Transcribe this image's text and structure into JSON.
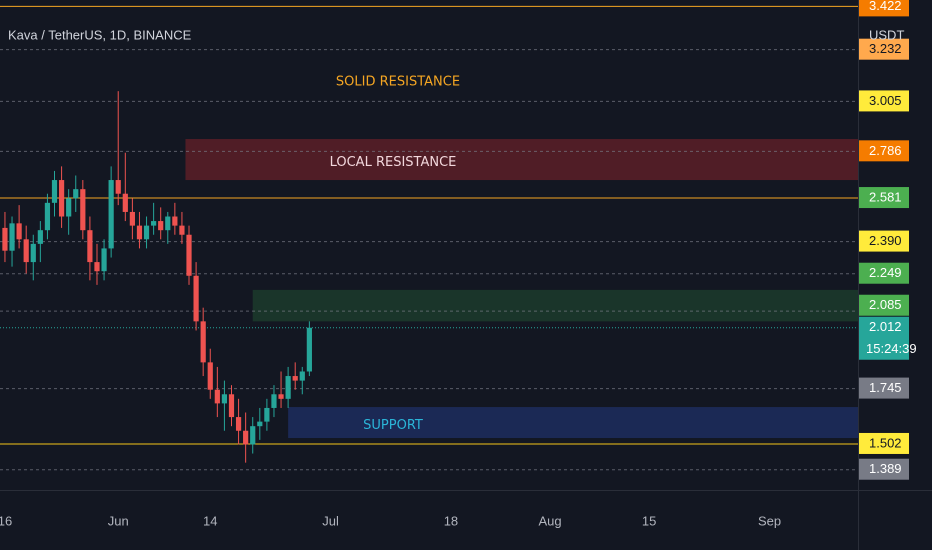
{
  "chart_data": {
    "type": "candlestick",
    "title": "Kava / TetherUS, 1D, BINANCE",
    "currency": "USDT",
    "up_color": "#26a69a",
    "down_color": "#ef5350",
    "ylim": [
      1.3,
      3.45
    ],
    "xlim": [
      -0.7,
      120.5
    ],
    "xticks": [
      {
        "value": 0,
        "label": "16"
      },
      {
        "value": 16,
        "label": "Jun"
      },
      {
        "value": 29,
        "label": "14"
      },
      {
        "value": 46,
        "label": "Jul"
      },
      {
        "value": 63,
        "label": "18"
      },
      {
        "value": 77,
        "label": "Aug"
      },
      {
        "value": 91,
        "label": "15"
      },
      {
        "value": 108,
        "label": "Sep"
      }
    ],
    "series": [
      {
        "name": "KAVAUSDT",
        "open": [
          2.45,
          2.35,
          2.47,
          2.4,
          2.3,
          2.38,
          2.44,
          2.56,
          2.66,
          2.5,
          2.58,
          2.62,
          2.44,
          2.3,
          2.26,
          2.36,
          2.66,
          2.6,
          2.52,
          2.46,
          2.4,
          2.46,
          2.48,
          2.44,
          2.5,
          2.46,
          2.42,
          2.24,
          2.04,
          1.86,
          1.74,
          1.68,
          1.72,
          1.62,
          1.56,
          1.5,
          1.58,
          1.6,
          1.66,
          1.72,
          1.7,
          1.8,
          1.78,
          1.82
        ],
        "high": [
          2.52,
          2.5,
          2.55,
          2.46,
          2.42,
          2.48,
          2.6,
          2.7,
          2.72,
          2.62,
          2.68,
          2.66,
          2.5,
          2.38,
          2.4,
          2.72,
          3.05,
          2.78,
          2.58,
          2.52,
          2.5,
          2.56,
          2.54,
          2.52,
          2.56,
          2.52,
          2.46,
          2.3,
          2.1,
          1.92,
          1.84,
          1.78,
          1.76,
          1.7,
          1.64,
          1.62,
          1.66,
          1.7,
          1.76,
          1.82,
          1.84,
          1.86,
          1.84,
          2.04
        ],
        "low": [
          2.3,
          2.28,
          2.36,
          2.25,
          2.22,
          2.3,
          2.4,
          2.5,
          2.45,
          2.42,
          2.52,
          2.4,
          2.22,
          2.2,
          2.22,
          2.32,
          2.55,
          2.48,
          2.4,
          2.36,
          2.36,
          2.42,
          2.4,
          2.38,
          2.42,
          2.38,
          2.2,
          2.0,
          1.8,
          1.7,
          1.62,
          1.56,
          1.58,
          1.5,
          1.42,
          1.46,
          1.52,
          1.56,
          1.62,
          1.66,
          1.66,
          1.74,
          1.72,
          1.8
        ],
        "close": [
          2.35,
          2.47,
          2.4,
          2.3,
          2.38,
          2.44,
          2.56,
          2.66,
          2.5,
          2.58,
          2.62,
          2.44,
          2.3,
          2.26,
          2.36,
          2.66,
          2.6,
          2.52,
          2.46,
          2.4,
          2.46,
          2.48,
          2.44,
          2.5,
          2.46,
          2.42,
          2.24,
          2.04,
          1.86,
          1.74,
          1.68,
          1.72,
          1.62,
          1.56,
          1.5,
          1.58,
          1.6,
          1.66,
          1.72,
          1.7,
          1.8,
          1.78,
          1.82,
          2.012
        ]
      }
    ],
    "zones": [
      {
        "label": "LOCAL RESISTANCE",
        "from": 25.5,
        "top": 2.84,
        "bottom": 2.66,
        "color": "#5c1f27",
        "text_color": "#f2d7dc"
      },
      {
        "from": 35,
        "top": 2.178,
        "bottom": 2.04,
        "color": "#1c3b2c"
      },
      {
        "label": "SUPPORT",
        "from": 40,
        "top": 1.664,
        "bottom": 1.528,
        "color": "#1d2d5e",
        "text_color": "#2bb5d8"
      }
    ],
    "annotations": [
      {
        "text": "SOLID RESISTANCE",
        "value": 3.09,
        "color": "#f5a623"
      }
    ],
    "levels": [
      {
        "value": 3.422,
        "label": "3.422",
        "tag_color": "#f57c00",
        "line_color": "#f5a623",
        "line_style": "solid"
      },
      {
        "value": 3.232,
        "label": "3.232",
        "tag_color": "#ffa94d",
        "line_color": "#787b86",
        "line_style": "dashed"
      },
      {
        "value": 3.005,
        "label": "3.005",
        "tag_color": "#ffeb3b",
        "line_color": "#787b86",
        "line_style": "dashed"
      },
      {
        "value": 2.786,
        "label": "2.786",
        "tag_color": "#f57c00",
        "line_color": "#787b86",
        "line_style": "dashed"
      },
      {
        "value": 2.581,
        "label": "2.581",
        "tag_color": "#4caf50",
        "line_color": "#f5a623",
        "line_style": "solid"
      },
      {
        "value": 2.39,
        "label": "2.390",
        "tag_color": "#ffeb3b",
        "line_color": "#787b86",
        "line_style": "dashed"
      },
      {
        "value": 2.249,
        "label": "2.249",
        "tag_color": "#4caf50",
        "line_color": "#787b86",
        "line_style": "dashed"
      },
      {
        "value": 2.085,
        "label": "2.085",
        "tag_color": "#4caf50",
        "line_color": "#787b86",
        "line_style": "dashed"
      },
      {
        "value": 1.745,
        "label": "1.745",
        "tag_color": "#787b86",
        "line_color": "#787b86",
        "line_style": "dashed"
      },
      {
        "value": 1.502,
        "label": "1.502",
        "tag_color": "#ffeb3b",
        "line_color": "#f5c518",
        "line_style": "solid"
      },
      {
        "value": 1.389,
        "label": "1.389",
        "tag_color": "#787b86",
        "line_color": "#787b86",
        "line_style": "dashed"
      }
    ],
    "current": {
      "value": 2.012,
      "label": "2.012",
      "countdown": "15:24:39",
      "color": "#26a69a"
    }
  }
}
